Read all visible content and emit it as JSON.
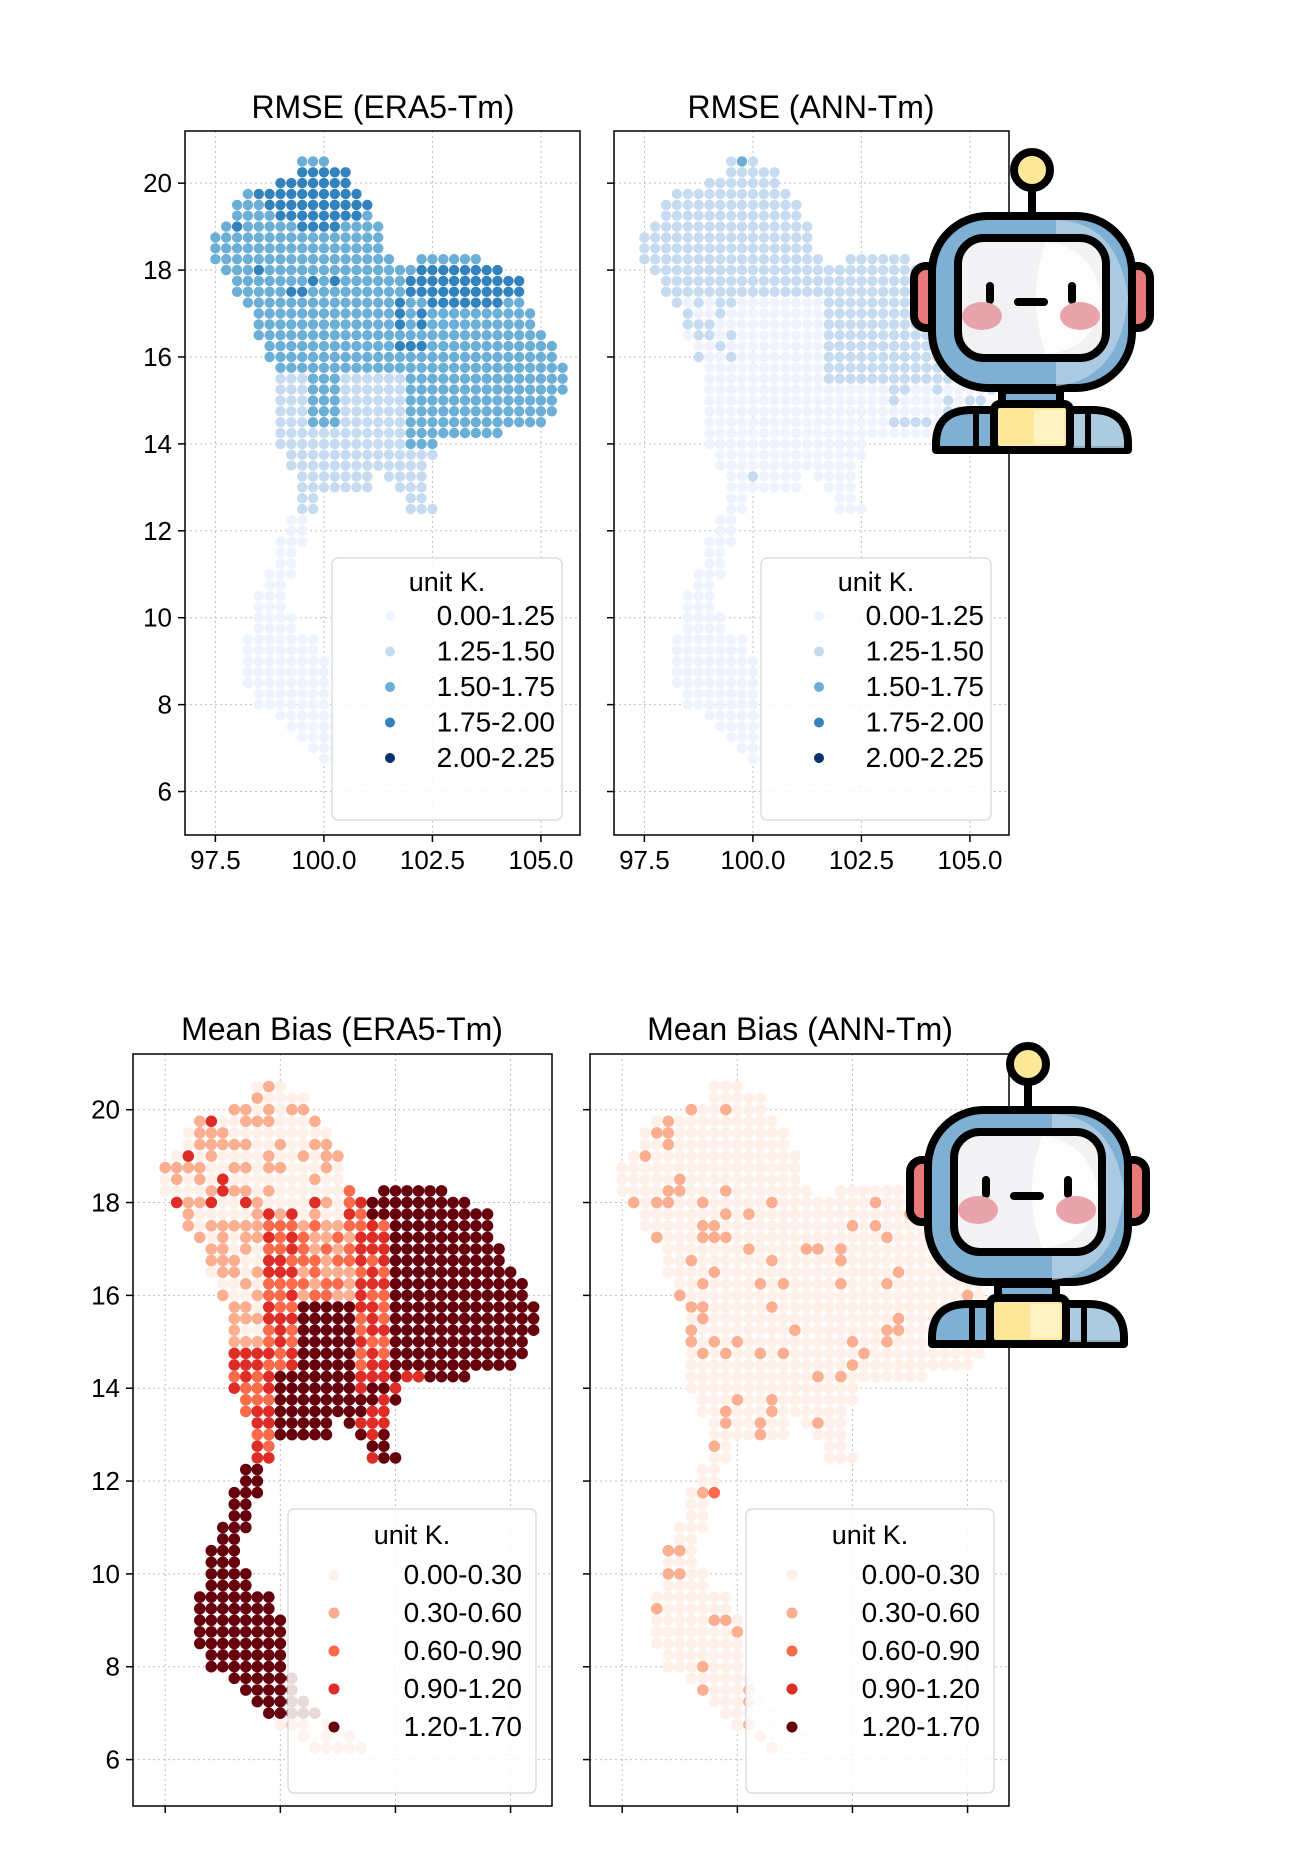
{
  "chart_data": [
    {
      "type": "scatter",
      "title": "RMSE (ERA5-Tm)",
      "xlim": [
        96.8,
        105.9
      ],
      "ylim": [
        5.0,
        21.2
      ],
      "xticks": [
        "97.5",
        "100.0",
        "102.5",
        "105.0"
      ],
      "yticks": [
        "6",
        "8",
        "10",
        "12",
        "14",
        "16",
        "18",
        "20"
      ],
      "grid": true,
      "legend": {
        "placement": "lower-right",
        "title": "unit K.",
        "classes": [
          "0.00-1.25",
          "1.25-1.50",
          "1.50-1.75",
          "1.75-2.00",
          "2.00-2.25"
        ],
        "colors": [
          "#eff3ff",
          "#c6dbef",
          "#6baed6",
          "#3182bd",
          "#08306b"
        ]
      }
    },
    {
      "type": "scatter",
      "title": "RMSE (ANN-Tm)",
      "xlim": [
        96.8,
        105.9
      ],
      "ylim": [
        5.0,
        21.2
      ],
      "xticks": [
        "97.5",
        "100.0",
        "102.5",
        "105.0"
      ],
      "yticks": [],
      "grid": true,
      "legend": {
        "placement": "lower-right",
        "title": "unit K.",
        "classes": [
          "0.00-1.25",
          "1.25-1.50",
          "1.50-1.75",
          "1.75-2.00",
          "2.00-2.25"
        ],
        "colors": [
          "#eff3ff",
          "#c6dbef",
          "#6baed6",
          "#3182bd",
          "#08306b"
        ]
      }
    },
    {
      "type": "scatter",
      "title": "Mean Bias (ERA5-Tm)",
      "xlim": [
        96.8,
        105.9
      ],
      "ylim": [
        5.0,
        21.2
      ],
      "xticks": [],
      "yticks": [
        "6",
        "8",
        "10",
        "12",
        "14",
        "16",
        "18",
        "20"
      ],
      "grid": true,
      "legend": {
        "placement": "lower-right",
        "title": "unit K.",
        "classes": [
          "0.00-0.30",
          "0.30-0.60",
          "0.60-0.90",
          "0.90-1.20",
          "1.20-1.70"
        ],
        "colors": [
          "#fff1ea",
          "#fcae91",
          "#fb6a4a",
          "#de2d26",
          "#67000d"
        ]
      }
    },
    {
      "type": "scatter",
      "title": "Mean Bias (ANN-Tm)",
      "xlim": [
        96.8,
        105.9
      ],
      "ylim": [
        5.0,
        21.2
      ],
      "xticks": [],
      "yticks": [],
      "grid": true,
      "legend": {
        "placement": "lower-right",
        "title": "unit K.",
        "classes": [
          "0.00-0.30",
          "0.30-0.60",
          "0.60-0.90",
          "0.90-1.20",
          "1.20-1.70"
        ],
        "colors": [
          "#fff1ea",
          "#fcae91",
          "#fb6a4a",
          "#de2d26",
          "#67000d"
        ]
      }
    }
  ],
  "overlays": {
    "icon": "robot-icon",
    "colors": {
      "helmet": "#7fb0d3",
      "face": "#f2f2f4",
      "ear": "#e8787a",
      "cheek": "#e8a3ab",
      "bulb": "#fde89a",
      "outline": "#000000"
    }
  }
}
